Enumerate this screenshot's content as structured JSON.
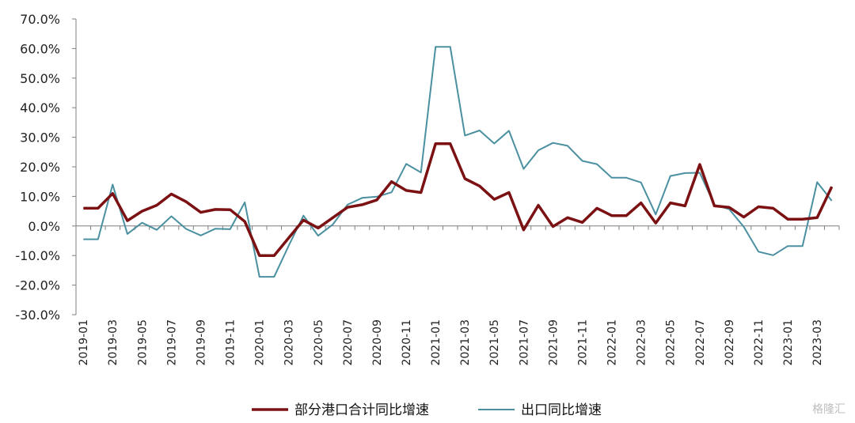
{
  "chart_data": {
    "type": "line",
    "title": "",
    "xlabel": "",
    "ylabel": "",
    "ylim": [
      -30,
      70
    ],
    "yticks": [
      "70.0%",
      "60.0%",
      "50.0%",
      "40.0%",
      "30.0%",
      "20.0%",
      "10.0%",
      "0.0%",
      "-10.0%",
      "-20.0%",
      "-30.0%"
    ],
    "ytick_values": [
      70,
      60,
      50,
      40,
      30,
      20,
      10,
      0,
      -10,
      -20,
      -30
    ],
    "x": [
      "2019-01",
      "2019-02",
      "2019-03",
      "2019-04",
      "2019-05",
      "2019-06",
      "2019-07",
      "2019-08",
      "2019-09",
      "2019-10",
      "2019-11",
      "2019-12",
      "2020-01",
      "2020-02",
      "2020-03",
      "2020-04",
      "2020-05",
      "2020-06",
      "2020-07",
      "2020-08",
      "2020-09",
      "2020-10",
      "2020-11",
      "2020-12",
      "2021-01",
      "2021-02",
      "2021-03",
      "2021-04",
      "2021-05",
      "2021-06",
      "2021-07",
      "2021-08",
      "2021-09",
      "2021-10",
      "2021-11",
      "2021-12",
      "2022-01",
      "2022-02",
      "2022-03",
      "2022-04",
      "2022-05",
      "2022-06",
      "2022-07",
      "2022-08",
      "2022-09",
      "2022-10",
      "2022-11",
      "2022-12",
      "2023-01",
      "2023-02",
      "2023-03",
      "2023-04"
    ],
    "xtick_labels": [
      "2019-01",
      "2019-03",
      "2019-05",
      "2019-07",
      "2019-09",
      "2019-11",
      "2020-01",
      "2020-03",
      "2020-05",
      "2020-07",
      "2020-09",
      "2020-11",
      "2021-01",
      "2021-03",
      "2021-05",
      "2021-07",
      "2021-09",
      "2021-11",
      "2022-01",
      "2022-03",
      "2022-05",
      "2022-07",
      "2022-09",
      "2022-11",
      "2023-01",
      "2023-03"
    ],
    "grid": false,
    "legend_position": "bottom",
    "series": [
      {
        "name": "部分港口合计同比增速",
        "color": "#7b1113",
        "values": [
          6.0,
          6.0,
          11.0,
          1.8,
          5.0,
          7.0,
          10.8,
          8.2,
          4.6,
          5.6,
          5.5,
          1.5,
          -10.0,
          -10.0,
          -4.0,
          2.0,
          -0.7,
          2.8,
          6.3,
          7.2,
          8.8,
          15.0,
          12.0,
          11.3,
          27.8,
          27.8,
          16.0,
          13.5,
          9.0,
          11.3,
          -1.3,
          7.0,
          -0.2,
          2.8,
          1.2,
          6.0,
          3.5,
          3.5,
          7.8,
          1.0,
          7.8,
          6.8,
          20.8,
          6.8,
          6.3,
          3.0,
          6.5,
          6.0,
          2.3,
          2.3,
          2.8,
          13.3
        ]
      },
      {
        "name": "出口同比增速",
        "color": "#4a90a0",
        "values": [
          -4.5,
          -4.5,
          14.0,
          -2.7,
          1.1,
          -1.3,
          3.3,
          -1.0,
          -3.2,
          -0.9,
          -1.1,
          8.0,
          -17.2,
          -17.2,
          -6.6,
          3.5,
          -3.3,
          0.5,
          7.2,
          9.5,
          9.9,
          11.4,
          21.0,
          18.1,
          60.6,
          60.6,
          30.6,
          32.3,
          27.9,
          32.2,
          19.3,
          25.6,
          28.1,
          27.1,
          22.0,
          20.9,
          16.3,
          16.3,
          14.7,
          3.9,
          16.9,
          17.9,
          18.0,
          7.1,
          5.7,
          -0.3,
          -8.7,
          -9.9,
          -6.8,
          -6.8,
          14.8,
          8.5
        ]
      }
    ]
  },
  "watermark": "格隆汇"
}
